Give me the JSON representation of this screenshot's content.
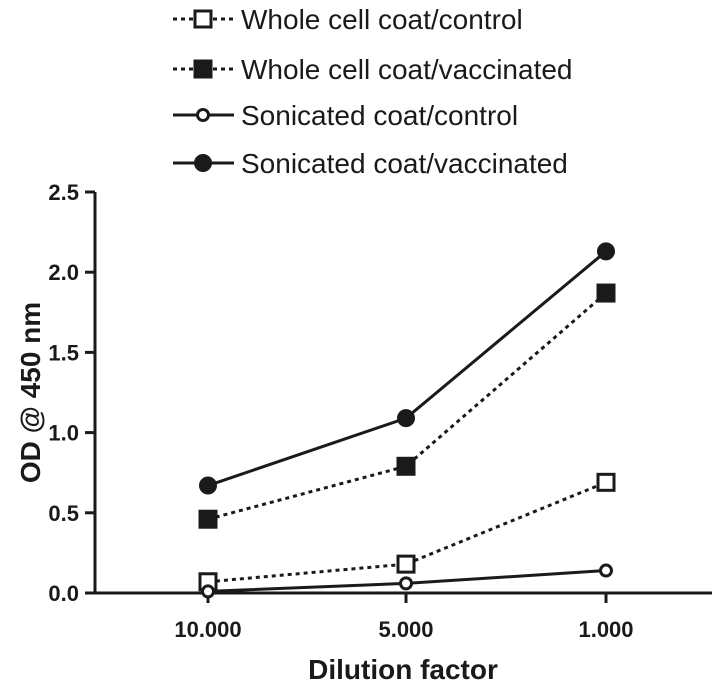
{
  "chart_data": {
    "type": "line",
    "title": "",
    "xlabel": "Dilution factor",
    "ylabel": "OD @ 450 nm",
    "categories": [
      "10.000",
      "5.000",
      "1.000"
    ],
    "ylim": [
      0,
      2.5
    ],
    "yticks": [
      "0.0",
      "0.5",
      "1.0",
      "1.5",
      "2.0",
      "2.5"
    ],
    "grid": false,
    "legend_position": "top",
    "series": [
      {
        "name": "Whole cell coat/control",
        "values": [
          0.07,
          0.18,
          0.69
        ],
        "line_style": "dashed",
        "marker": "open-square"
      },
      {
        "name": "Whole cell coat/vaccinated",
        "values": [
          0.46,
          0.79,
          1.87
        ],
        "line_style": "dashed",
        "marker": "filled-square"
      },
      {
        "name": "Sonicated coat/control",
        "values": [
          0.01,
          0.06,
          0.14
        ],
        "line_style": "solid",
        "marker": "open-circle"
      },
      {
        "name": "Sonicated coat/vaccinated",
        "values": [
          0.67,
          1.09,
          2.13
        ],
        "line_style": "solid",
        "marker": "filled-circle"
      }
    ],
    "colors": {
      "ink": "#1a1a1a",
      "background": "#ffffff"
    }
  }
}
